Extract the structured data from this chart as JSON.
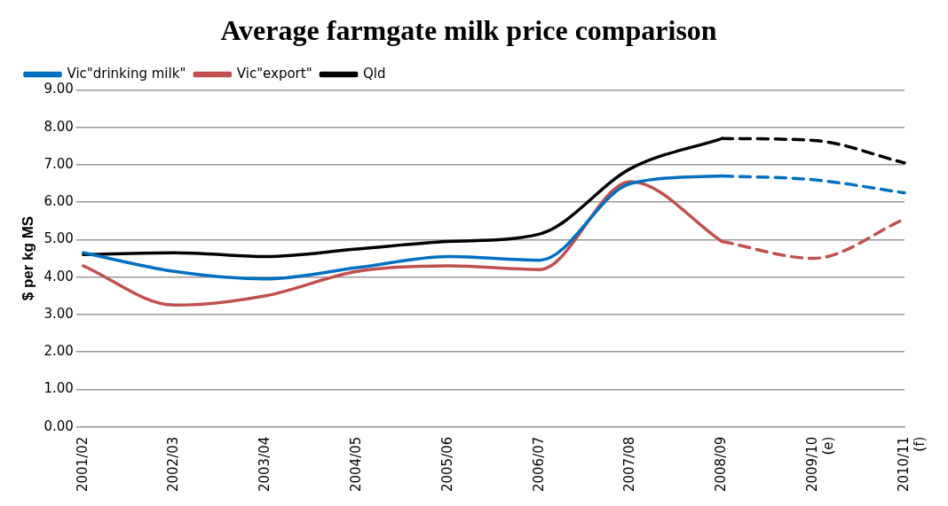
{
  "chart_data": {
    "type": "line",
    "title": "Average farmgate milk price comparison",
    "ylabel": "$ per kg MS",
    "categories": [
      "2001/02",
      "2002/03",
      "2003/04",
      "2004/05",
      "2005/06",
      "2006/07",
      "2007/08",
      "2008/09",
      "2009/10 (e)",
      "2010/11 (f)"
    ],
    "ylim": [
      0,
      9
    ],
    "yticks": [
      {
        "value": 0,
        "label": "0.00"
      },
      {
        "value": 1,
        "label": "1.00"
      },
      {
        "value": 2,
        "label": "2.00"
      },
      {
        "value": 3,
        "label": "3.00"
      },
      {
        "value": 4,
        "label": "4.00"
      },
      {
        "value": 5,
        "label": "5.00"
      },
      {
        "value": 6,
        "label": "6.00"
      },
      {
        "value": 7,
        "label": "7.00"
      },
      {
        "value": 8,
        "label": "8.00"
      },
      {
        "value": 9,
        "label": "9.00"
      }
    ],
    "grid": "y",
    "legend": "top left",
    "marker": "none",
    "series": [
      {
        "name": "Vic\"drinking milk\"",
        "color": "#0070c0",
        "line_style": "solid",
        "values": [
          4.65,
          4.15,
          3.95,
          4.25,
          4.55,
          4.45,
          6.5,
          6.7,
          null,
          null
        ]
      },
      {
        "name": "Vic\"export\"",
        "color": "#c0504d",
        "line_style": "solid",
        "values": [
          4.3,
          3.25,
          3.5,
          4.15,
          4.3,
          4.2,
          6.55,
          4.95,
          null,
          null
        ]
      },
      {
        "name": "Qld",
        "color": "#000000",
        "line_style": "solid",
        "values": [
          4.6,
          4.65,
          4.55,
          4.75,
          4.95,
          5.15,
          6.9,
          7.7,
          null,
          null
        ]
      },
      {
        "color": "#0070c0",
        "line_style": "dashed",
        "values": [
          null,
          null,
          null,
          null,
          null,
          null,
          null,
          6.7,
          6.6,
          6.25
        ]
      },
      {
        "color": "#c0504d",
        "line_style": "dashed",
        "values": [
          null,
          null,
          null,
          null,
          null,
          null,
          null,
          4.95,
          4.5,
          5.55
        ]
      },
      {
        "color": "#000000",
        "line_style": "dashed",
        "values": [
          null,
          null,
          null,
          null,
          null,
          null,
          null,
          7.7,
          7.65,
          7.05
        ]
      }
    ]
  }
}
